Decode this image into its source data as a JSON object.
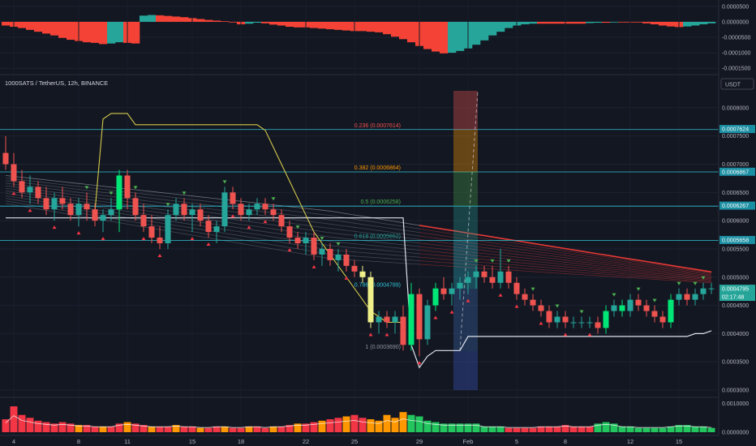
{
  "header": {
    "symbol": "1000SATS / TetherUS, 12h, BINANCE",
    "currency": "USDT"
  },
  "colors": {
    "up": "#26a69a",
    "down": "#ef5350",
    "bright_green": "#00e676",
    "yellow_candle": "#f0f08a",
    "fib_line": "#2ec4d6",
    "ribbon_red": "#e53935",
    "osc_red": "#f44336",
    "osc_teal": "#26a69a",
    "vol_orange": "#ff9800",
    "vol_red": "#f23645",
    "vol_green": "#22c55e"
  },
  "price_axis": {
    "ticks": [
      "0.0008000",
      "0.0007500",
      "0.0007000",
      "0.0006500",
      "0.0006000",
      "0.0005500",
      "0.0005000",
      "0.0004500",
      "0.0004000",
      "0.0003500",
      "0.0003000"
    ],
    "tags": [
      {
        "label": "0.0007624",
        "value": 0.0007624,
        "color": "#1c8fa3"
      },
      {
        "label": "0.0006867",
        "value": 0.0006867,
        "color": "#1c8fa3"
      },
      {
        "label": "0.0006267",
        "value": 0.0006267,
        "color": "#1c8fa3"
      },
      {
        "label": "0.0005658",
        "value": 0.0005658,
        "color": "#1c8fa3"
      },
      {
        "label": "0.0004795",
        "value": 0.0004795,
        "color": "#26a69a"
      }
    ],
    "countdown": "02:17:48"
  },
  "osc_axis": {
    "ticks": [
      "0.0000500",
      "0.0000000",
      "-0.0000500",
      "-0.0001000",
      "-0.0001500"
    ]
  },
  "vol_axis": {
    "ticks": [
      "0.0010000",
      "0.0000000"
    ]
  },
  "x_axis": {
    "ticks": [
      "4",
      "8",
      "11",
      "15",
      "18",
      "22",
      "25",
      "29",
      "Feb",
      "5",
      "8",
      "12",
      "15"
    ]
  },
  "fib_levels": [
    {
      "label": "0.236 (0.0007614)",
      "value": 0.0007614,
      "color": "#ef5350"
    },
    {
      "label": "0.382 (0.0006864)",
      "value": 0.0006864,
      "color": "#ff9800"
    },
    {
      "label": "0.5 (0.0006258)",
      "value": 0.0006258,
      "color": "#4caf50"
    },
    {
      "label": "0.618 (0.0005652)",
      "value": 0.0005652,
      "color": "#26a69a"
    },
    {
      "label": "0.786 (0.0004789)",
      "value": 0.0004789,
      "color": "#2ec4d6"
    },
    {
      "label": "1 (0.0003690)",
      "value": 0.000369,
      "color": "#8f93a0"
    }
  ],
  "chart_data": {
    "type": "candlestick",
    "symbol": "1000SATS / TetherUS",
    "interval": "12h",
    "exchange": "BINANCE",
    "ylim": [
      0.00029,
      0.00083
    ],
    "candles": [
      [
        0.00072,
        0.00075,
        0.00069,
        0.0007
      ],
      [
        0.0007,
        0.00072,
        0.00066,
        0.00067
      ],
      [
        0.00067,
        0.00069,
        0.00064,
        0.00065
      ],
      [
        0.00065,
        0.00068,
        0.00063,
        0.00066
      ],
      [
        0.00066,
        0.00067,
        0.00063,
        0.00064
      ],
      [
        0.00064,
        0.00066,
        0.00061,
        0.00062
      ],
      [
        0.00062,
        0.00065,
        0.0006,
        0.00064
      ],
      [
        0.00064,
        0.00066,
        0.00062,
        0.00063
      ],
      [
        0.00063,
        0.00064,
        0.0006,
        0.00061
      ],
      [
        0.00061,
        0.00064,
        0.00059,
        0.00063
      ],
      [
        0.00063,
        0.00065,
        0.0006,
        0.00062
      ],
      [
        0.00062,
        0.00063,
        0.00059,
        0.0006
      ],
      [
        0.0006,
        0.00062,
        0.00058,
        0.00061
      ],
      [
        0.00061,
        0.00064,
        0.0006,
        0.00062
      ],
      [
        0.00062,
        0.00069,
        0.00058,
        0.00068
      ],
      [
        0.00068,
        0.00069,
        0.00062,
        0.00064
      ],
      [
        0.00064,
        0.00065,
        0.0006,
        0.00061
      ],
      [
        0.00061,
        0.00063,
        0.00058,
        0.00059
      ],
      [
        0.00059,
        0.00061,
        0.00056,
        0.00057
      ],
      [
        0.00057,
        0.00059,
        0.00055,
        0.00056
      ],
      [
        0.00056,
        0.00062,
        0.00055,
        0.00061
      ],
      [
        0.00061,
        0.00064,
        0.0006,
        0.00063
      ],
      [
        0.00063,
        0.00064,
        0.0006,
        0.00061
      ],
      [
        0.00061,
        0.00063,
        0.00058,
        0.00062
      ],
      [
        0.00062,
        0.00063,
        0.00059,
        0.0006
      ],
      [
        0.0006,
        0.00061,
        0.00057,
        0.00058
      ],
      [
        0.00058,
        0.0006,
        0.00056,
        0.00059
      ],
      [
        0.00059,
        0.00066,
        0.00058,
        0.00065
      ],
      [
        0.00065,
        0.00066,
        0.00062,
        0.00063
      ],
      [
        0.00063,
        0.00064,
        0.0006,
        0.00061
      ],
      [
        0.00061,
        0.00063,
        0.0006,
        0.00062
      ],
      [
        0.00062,
        0.00064,
        0.00061,
        0.00063
      ],
      [
        0.00063,
        0.00064,
        0.00061,
        0.00062
      ],
      [
        0.00062,
        0.00063,
        0.0006,
        0.00061
      ],
      [
        0.00061,
        0.00062,
        0.00058,
        0.00059
      ],
      [
        0.00059,
        0.0006,
        0.00056,
        0.00057
      ],
      [
        0.00057,
        0.00058,
        0.00055,
        0.00056
      ],
      [
        0.00056,
        0.00058,
        0.00054,
        0.00057
      ],
      [
        0.00057,
        0.00058,
        0.00053,
        0.00054
      ],
      [
        0.00054,
        0.00056,
        0.00052,
        0.00055
      ],
      [
        0.00055,
        0.00056,
        0.00052,
        0.00053
      ],
      [
        0.00053,
        0.00055,
        0.00051,
        0.00054
      ],
      [
        0.00054,
        0.00055,
        0.00051,
        0.00052
      ],
      [
        0.00052,
        0.00053,
        0.0005,
        0.00051
      ],
      [
        0.00051,
        0.00052,
        0.00049,
        0.0005
      ],
      [
        0.0005,
        0.00051,
        0.00041,
        0.00042
      ],
      [
        0.00042,
        0.00044,
        0.0004,
        0.00043
      ],
      [
        0.00043,
        0.00044,
        0.00041,
        0.00042
      ],
      [
        0.00042,
        0.00044,
        0.0004,
        0.00043
      ],
      [
        0.00043,
        0.00045,
        0.00037,
        0.00038
      ],
      [
        0.00038,
        0.00049,
        0.00037,
        0.00047
      ],
      [
        0.00047,
        0.00048,
        0.00036,
        0.00039
      ],
      [
        0.00039,
        0.00046,
        0.00038,
        0.00045
      ],
      [
        0.00045,
        0.00049,
        0.00044,
        0.00048
      ],
      [
        0.00048,
        0.0005,
        0.00046,
        0.00047
      ],
      [
        0.00047,
        0.00049,
        0.00045,
        0.00048
      ],
      [
        0.00048,
        0.0005,
        0.00046,
        0.00049
      ],
      [
        0.00049,
        0.00051,
        0.00047,
        0.0005
      ],
      [
        0.0005,
        0.00052,
        0.00048,
        0.00051
      ],
      [
        0.00051,
        0.00052,
        0.00049,
        0.0005
      ],
      [
        0.0005,
        0.00052,
        0.00048,
        0.00049
      ],
      [
        0.00049,
        0.00055,
        0.00048,
        0.00051
      ],
      [
        0.00051,
        0.00052,
        0.00048,
        0.00049
      ],
      [
        0.00049,
        0.0005,
        0.00046,
        0.00047
      ],
      [
        0.00047,
        0.00048,
        0.00045,
        0.00046
      ],
      [
        0.00046,
        0.00047,
        0.00044,
        0.00045
      ],
      [
        0.00045,
        0.00046,
        0.00043,
        0.00044
      ],
      [
        0.00044,
        0.00045,
        0.00041,
        0.00042
      ],
      [
        0.00042,
        0.00044,
        0.00041,
        0.00043
      ],
      [
        0.00043,
        0.00044,
        0.00041,
        0.00042
      ],
      [
        0.00042,
        0.00043,
        0.00041,
        0.00042
      ],
      [
        0.00042,
        0.00043,
        0.00041,
        0.00042
      ],
      [
        0.00042,
        0.00043,
        0.00041,
        0.00042
      ],
      [
        0.00042,
        0.00043,
        0.0004,
        0.00041
      ],
      [
        0.00041,
        0.00045,
        0.0004,
        0.00044
      ],
      [
        0.00044,
        0.00046,
        0.00043,
        0.00045
      ],
      [
        0.00045,
        0.00046,
        0.00043,
        0.00044
      ],
      [
        0.00044,
        0.00047,
        0.00043,
        0.00046
      ],
      [
        0.00046,
        0.00047,
        0.00044,
        0.00045
      ],
      [
        0.00045,
        0.00046,
        0.00043,
        0.00044
      ],
      [
        0.00044,
        0.00045,
        0.00042,
        0.00043
      ],
      [
        0.00043,
        0.00044,
        0.00041,
        0.00042
      ],
      [
        0.00042,
        0.00047,
        0.00041,
        0.00046
      ],
      [
        0.00046,
        0.00048,
        0.00045,
        0.00047
      ],
      [
        0.00047,
        0.00048,
        0.00045,
        0.00046
      ],
      [
        0.00046,
        0.00048,
        0.00045,
        0.00047
      ],
      [
        0.00047,
        0.00049,
        0.00046,
        0.00048
      ],
      [
        0.00048,
        0.00049,
        0.00047,
        0.00048
      ]
    ],
    "white_line": [
      0.000605,
      0.000605,
      0.000605,
      0.000605,
      0.000605,
      0.000605,
      0.000605,
      0.000605,
      0.000605,
      0.000605,
      0.000605,
      0.000605,
      0.000605,
      0.000605,
      0.000605,
      0.000605,
      0.000605,
      0.000605,
      0.000605,
      0.000605,
      0.000605,
      0.000605,
      0.000605,
      0.000605,
      0.000605,
      0.000605,
      0.000605,
      0.000605,
      0.000605,
      0.000605,
      0.000605,
      0.000605,
      0.000605,
      0.000605,
      0.000605,
      0.000605,
      0.000605,
      0.000605,
      0.000605,
      0.000605,
      0.000605,
      0.000605,
      0.000605,
      0.000605,
      0.000605,
      0.000605,
      0.000605,
      0.000605,
      0.000605,
      0.000605,
      0.00038,
      0.00034,
      0.00036,
      0.00037,
      0.00037,
      0.00037,
      0.00037,
      0.000395,
      0.000395,
      0.000395,
      0.000395,
      0.000395,
      0.000395,
      0.000395,
      0.000395,
      0.000395,
      0.000395,
      0.000395,
      0.000395,
      0.000395,
      0.000395,
      0.000395,
      0.000395,
      0.000395,
      0.000395,
      0.000395,
      0.000395,
      0.000395,
      0.000395,
      0.000395,
      0.000395,
      0.000395,
      0.000395,
      0.000395,
      0.000395,
      0.0004,
      0.0004,
      0.000405
    ],
    "yellow_line": [
      null,
      null,
      null,
      null,
      null,
      null,
      null,
      null,
      null,
      null,
      null,
      0.000615,
      0.00078,
      0.00079,
      0.00079,
      0.00079,
      0.00077,
      0.00077,
      0.00077,
      0.00077,
      0.00077,
      0.00077,
      0.00077,
      0.00077,
      0.00077,
      0.00077,
      0.00077,
      0.00077,
      0.00077,
      0.00077,
      0.00077,
      0.00077,
      0.00076,
      0.00073,
      0.0007,
      0.00067,
      0.00064,
      0.00061,
      0.00058,
      0.00056,
      0.00054,
      0.00052,
      0.0005,
      0.00048,
      0.00046,
      0.00044,
      0.00043,
      0.00042,
      0.00042,
      0.00042
    ],
    "oscillator": [
      -1.2e-05,
      -1.6e-05,
      -2e-05,
      -2.6e-05,
      -3.2e-05,
      -3.8e-05,
      -4.4e-05,
      -5.2e-05,
      -5.8e-05,
      -6.2e-05,
      -6.6e-05,
      -6.8e-05,
      -7.2e-05,
      -7e-05,
      -6.6e-05,
      -6.8e-05,
      -7e-05,
      2e-05,
      2.2e-05,
      2.1e-05,
      1.9e-05,
      1.7e-05,
      1.5e-05,
      1.2e-05,
      9e-06,
      6e-06,
      4e-06,
      2e-06,
      -2e-06,
      -8e-06,
      -6e-06,
      -3e-06,
      -5e-06,
      -9e-06,
      -1.2e-05,
      -1.6e-05,
      -1.8e-05,
      -1.8e-05,
      -2e-05,
      -2.2e-05,
      -2.4e-05,
      -2.6e-05,
      -2.8e-05,
      -3e-05,
      -3e-05,
      -3.2e-05,
      -3.4e-05,
      -4e-05,
      -4.8e-05,
      -5.6e-05,
      -6.6e-05,
      -7.8e-05,
      -8.8e-05,
      -9.6e-05,
      -0.000102,
      -0.0001,
      -9.4e-05,
      -8.6e-05,
      -7.4e-05,
      -6e-05,
      -4.4e-05,
      -3.2e-05,
      -2e-05,
      -1.2e-05,
      -8e-06,
      -6e-06,
      -6e-06,
      -6e-06,
      -6e-06,
      -6e-06,
      -6e-06,
      -6e-06,
      -4e-06,
      -3e-06,
      -3e-06,
      -1e-06,
      0.0,
      0.0,
      -2e-06,
      -5e-06,
      -8e-06,
      -1.2e-05,
      -1.5e-05,
      -1.7e-05,
      -1.5e-05,
      -1.2e-05,
      -8e-06,
      -5e-06
    ],
    "volume": [
      0.00045,
      0.0009,
      0.0006,
      0.0005,
      0.0004,
      0.00035,
      0.0003,
      0.00035,
      0.0003,
      0.00025,
      0.00025,
      0.0002,
      0.0002,
      0.0002,
      0.0003,
      0.00035,
      0.0003,
      0.00025,
      0.0002,
      0.0002,
      0.0002,
      0.00025,
      0.0002,
      0.0002,
      0.00015,
      0.00015,
      0.0002,
      0.0002,
      0.00015,
      0.00015,
      0.0002,
      0.0002,
      0.00015,
      0.0002,
      0.0002,
      0.00025,
      0.0003,
      0.0003,
      0.00035,
      0.0004,
      0.00045,
      0.0005,
      0.00055,
      0.0006,
      0.0005,
      0.00045,
      0.0004,
      0.0006,
      0.0005,
      0.0007,
      0.0006,
      0.00055,
      0.0004,
      0.00035,
      0.0003,
      0.0003,
      0.0003,
      0.0003,
      0.0003,
      0.0002,
      0.0002,
      0.0002,
      0.00015,
      0.00015,
      0.00015,
      0.00015,
      0.0002,
      0.0002,
      0.0002,
      0.00025,
      0.0002,
      0.0002,
      0.0002,
      0.0003,
      0.00035,
      0.0003,
      0.0002,
      0.0002,
      0.00015,
      0.00015,
      0.00015,
      0.00015,
      0.0002,
      0.00025,
      0.00025,
      0.0002,
      0.0002,
      0.00015
    ]
  }
}
